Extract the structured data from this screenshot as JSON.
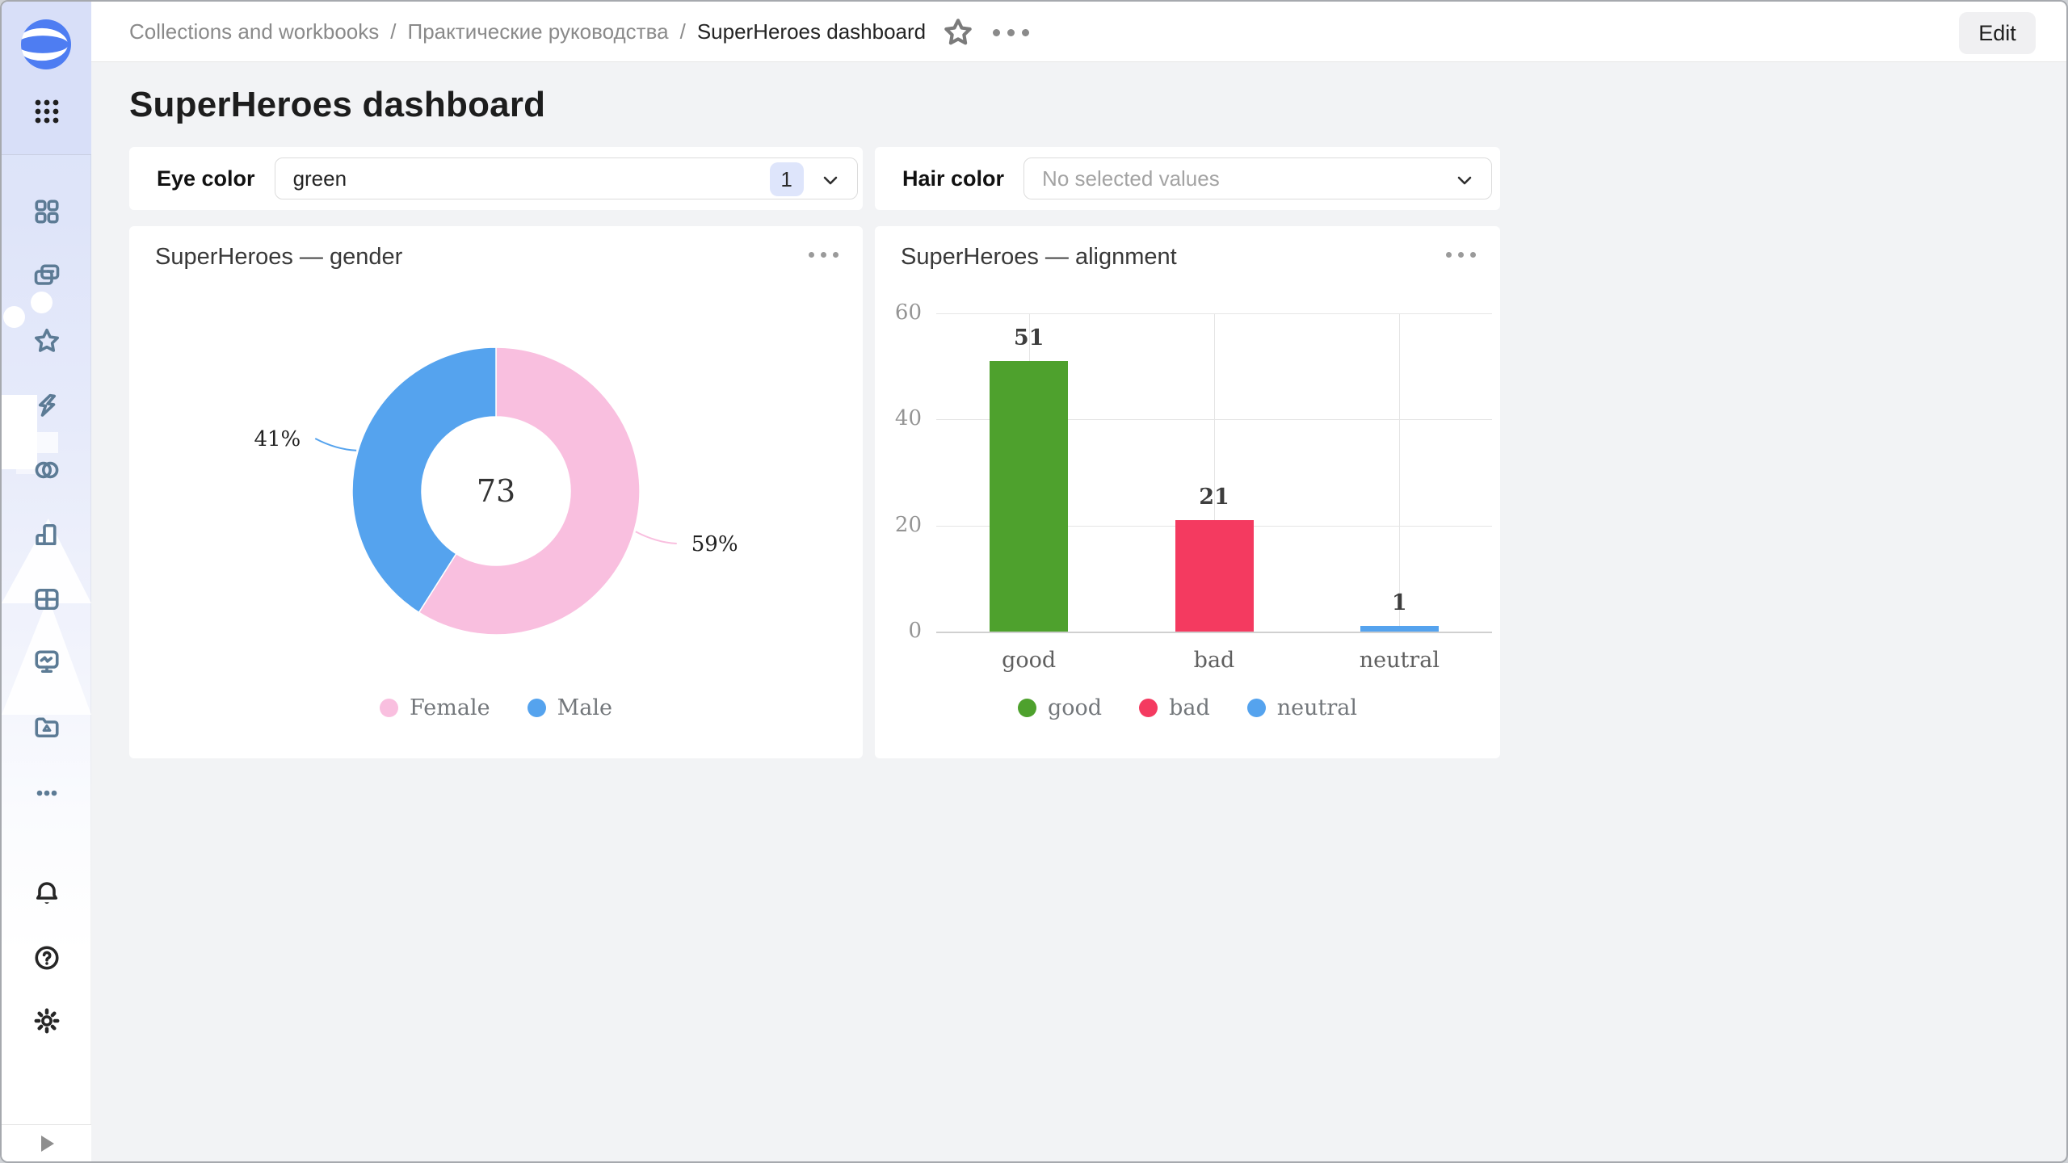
{
  "header": {
    "breadcrumbs": [
      "Collections and workbooks",
      "Практические руководства",
      "SuperHeroes dashboard"
    ],
    "separator": "/",
    "icons": [
      "favorite-star-icon",
      "more-options-icon"
    ],
    "edit_label": "Edit"
  },
  "page": {
    "title": "SuperHeroes dashboard"
  },
  "sidebar": {
    "icons": [
      "datalens-logo",
      "apps-grid-icon",
      "dashboards-icon",
      "collections-icon",
      "favorites-icon",
      "quick-actions-icon",
      "connections-icon",
      "charts-icon",
      "tables-icon",
      "monitoring-icon",
      "storage-icon",
      "more-icon",
      "notifications-icon",
      "help-icon",
      "settings-icon",
      "expand-icon"
    ]
  },
  "filters": {
    "eye_color": {
      "label": "Eye color",
      "value": "green",
      "count": "1"
    },
    "hair_color": {
      "label": "Hair color",
      "placeholder": "No selected values"
    }
  },
  "cards": [
    {
      "title": "SuperHeroes — gender"
    },
    {
      "title": "SuperHeroes — alignment"
    }
  ],
  "chart_data": [
    {
      "type": "pie",
      "subtype": "donut",
      "title": "SuperHeroes — gender",
      "center_total": "73",
      "slices": [
        {
          "name": "Female",
          "percent": 59,
          "label": "59%",
          "color": "#F9BFDF"
        },
        {
          "name": "Male",
          "percent": 41,
          "label": "41%",
          "color": "#55A3EE"
        }
      ],
      "legend_position": "bottom"
    },
    {
      "type": "bar",
      "title": "SuperHeroes — alignment",
      "categories": [
        "good",
        "bad",
        "neutral"
      ],
      "values": [
        51,
        21,
        1
      ],
      "data_labels": [
        "51",
        "21",
        "1"
      ],
      "colors": [
        "#4EA12D",
        "#F43A60",
        "#55A3EE"
      ],
      "yticks": [
        0,
        20,
        40,
        60
      ],
      "ylim": [
        0,
        60
      ],
      "grid": true,
      "legend": [
        "good",
        "bad",
        "neutral"
      ],
      "legend_position": "bottom"
    }
  ]
}
